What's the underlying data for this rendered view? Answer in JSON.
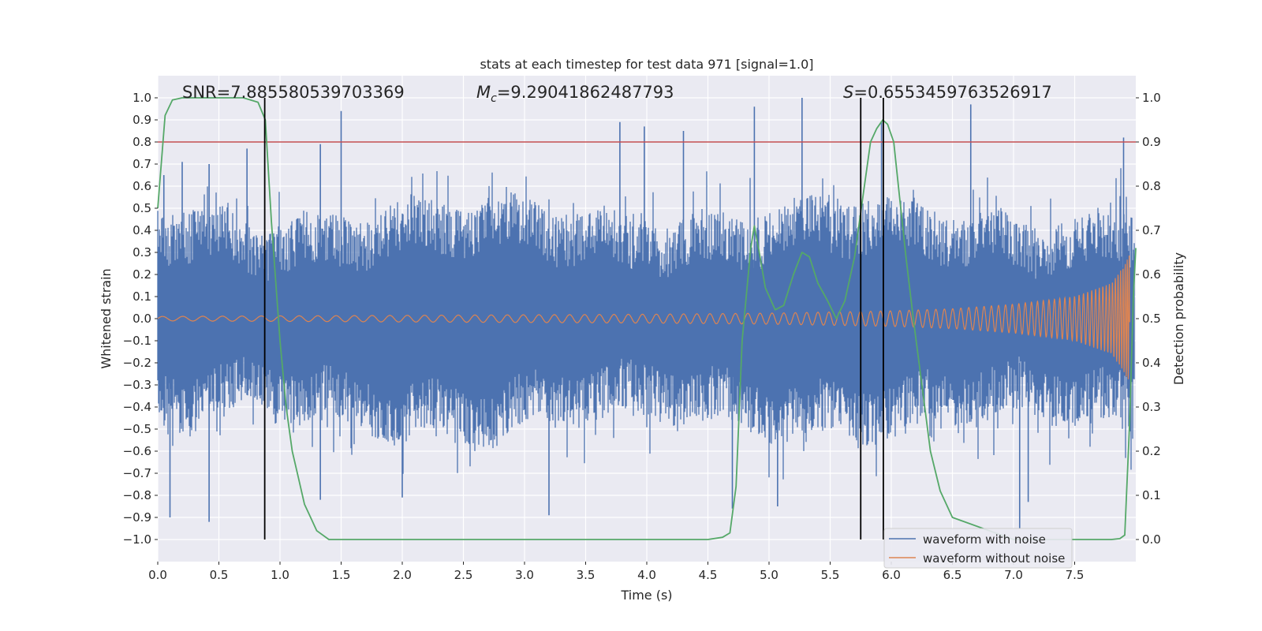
{
  "chart_data": {
    "type": "line",
    "title": "stats at each timestep for test data 971 [signal=1.0]",
    "xlabel": "Time (s)",
    "ylabel_left": "Whitened strain",
    "ylabel_right": "Detection probability",
    "xlim": [
      0.0,
      8.0
    ],
    "ylim_left": [
      -1.1,
      1.1
    ],
    "ylim_right": [
      -0.05,
      1.05
    ],
    "x_ticks": [
      "0.0",
      "0.5",
      "1.0",
      "1.5",
      "2.0",
      "2.5",
      "3.0",
      "3.5",
      "4.0",
      "4.5",
      "5.0",
      "5.5",
      "6.0",
      "6.5",
      "7.0",
      "7.5"
    ],
    "y_left_ticks": [
      "1.0",
      "0.9",
      "0.8",
      "0.7",
      "0.6",
      "0.5",
      "0.4",
      "0.3",
      "0.2",
      "0.1",
      "0.0",
      "−0.1",
      "−0.2",
      "−0.3",
      "−0.4",
      "−0.5",
      "−0.6",
      "−0.7",
      "−0.8",
      "−0.9",
      "−1.0"
    ],
    "y_right_ticks": [
      "1.0",
      "0.9",
      "0.8",
      "0.7",
      "0.6",
      "0.5",
      "0.4",
      "0.3",
      "0.2",
      "0.1",
      "0.0"
    ],
    "grid": true,
    "legend_position": "lower-right",
    "annotations": {
      "snr": "SNR=7.885580539703369",
      "mc_symbol": "M",
      "mc_sub": "c",
      "mc_value": "=9.29041862487793",
      "s_symbol": "S",
      "s_value": "=0.6553459763526917"
    },
    "threshold_line": {
      "y_right": 0.9,
      "color": "#c44e52"
    },
    "vertical_markers_x": [
      0.875,
      5.75,
      5.935
    ],
    "series": [
      {
        "name": "waveform with noise",
        "color": "#4c72b0",
        "axis": "left",
        "envelope_peaks": [
          {
            "x": 0.05,
            "y": 0.65
          },
          {
            "x": 0.2,
            "y": 0.71
          },
          {
            "x": 0.42,
            "y": 0.7
          },
          {
            "x": 0.73,
            "y": 0.77
          },
          {
            "x": 1.5,
            "y": 0.94
          },
          {
            "x": 1.33,
            "y": 0.79
          },
          {
            "x": 3.78,
            "y": 0.89
          },
          {
            "x": 3.98,
            "y": 0.87
          },
          {
            "x": 4.3,
            "y": 0.85
          },
          {
            "x": 4.88,
            "y": 0.96
          },
          {
            "x": 5.27,
            "y": 1.0
          },
          {
            "x": 5.92,
            "y": 0.89
          },
          {
            "x": 6.65,
            "y": 0.97
          },
          {
            "x": 7.9,
            "y": 0.82
          }
        ],
        "envelope_troughs": [
          {
            "x": 0.1,
            "y": -0.9
          },
          {
            "x": 0.42,
            "y": -0.92
          },
          {
            "x": 1.33,
            "y": -0.82
          },
          {
            "x": 2.0,
            "y": -0.81
          },
          {
            "x": 3.2,
            "y": -0.89
          },
          {
            "x": 4.7,
            "y": -0.86
          },
          {
            "x": 5.07,
            "y": -0.85
          },
          {
            "x": 7.05,
            "y": -0.95
          },
          {
            "x": 7.12,
            "y": -0.83
          }
        ]
      },
      {
        "name": "waveform without noise",
        "color": "#dd8452",
        "axis": "left",
        "amplitude": [
          {
            "x": 0.0,
            "y": 0.01
          },
          {
            "x": 4.0,
            "y": 0.02
          },
          {
            "x": 5.0,
            "y": 0.025
          },
          {
            "x": 6.0,
            "y": 0.035
          },
          {
            "x": 6.5,
            "y": 0.045
          },
          {
            "x": 7.0,
            "y": 0.065
          },
          {
            "x": 7.5,
            "y": 0.1
          },
          {
            "x": 7.8,
            "y": 0.16
          },
          {
            "x": 7.9,
            "y": 0.24
          },
          {
            "x": 7.95,
            "y": 0.29
          }
        ]
      },
      {
        "name": "detection probability",
        "color": "#55a868",
        "axis": "right",
        "x": [
          0.0,
          0.06,
          0.12,
          0.2,
          0.3,
          0.5,
          0.7,
          0.82,
          0.88,
          0.93,
          1.0,
          1.05,
          1.1,
          1.15,
          1.2,
          1.25,
          1.3,
          1.4,
          2.0,
          3.0,
          4.0,
          4.5,
          4.62,
          4.68,
          4.73,
          4.78,
          4.85,
          4.88,
          4.92,
          4.97,
          5.05,
          5.12,
          5.2,
          5.27,
          5.33,
          5.4,
          5.48,
          5.55,
          5.62,
          5.7,
          5.77,
          5.83,
          5.88,
          5.93,
          5.97,
          6.02,
          6.07,
          6.12,
          6.18,
          6.25,
          6.32,
          6.4,
          6.5,
          7.0,
          7.5,
          7.8,
          7.87,
          7.91,
          7.95,
          7.98,
          8.0
        ],
        "y": [
          0.75,
          0.96,
          0.995,
          1.0,
          1.0,
          1.0,
          1.0,
          0.99,
          0.95,
          0.72,
          0.45,
          0.3,
          0.2,
          0.14,
          0.08,
          0.05,
          0.02,
          0.0,
          0.0,
          0.0,
          0.0,
          0.0,
          0.005,
          0.015,
          0.12,
          0.45,
          0.66,
          0.71,
          0.65,
          0.57,
          0.52,
          0.53,
          0.6,
          0.65,
          0.64,
          0.58,
          0.54,
          0.5,
          0.54,
          0.64,
          0.78,
          0.9,
          0.93,
          0.95,
          0.94,
          0.9,
          0.77,
          0.64,
          0.5,
          0.35,
          0.2,
          0.11,
          0.05,
          0.0,
          0.0,
          0.0,
          0.002,
          0.01,
          0.27,
          0.55,
          0.66
        ]
      }
    ]
  }
}
